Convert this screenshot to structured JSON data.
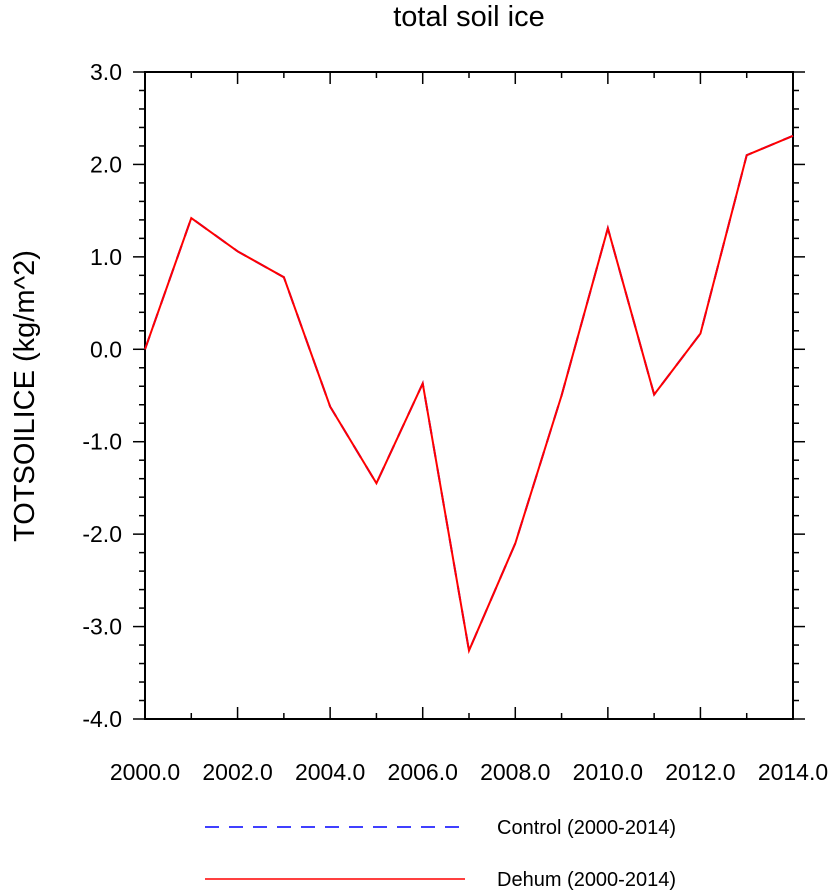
{
  "chart_data": {
    "type": "line",
    "title": "total soil ice",
    "xlabel": "",
    "ylabel": "TOTSOILICE  (kg/m^2)",
    "xlim": [
      2000,
      2014
    ],
    "ylim": [
      -4.0,
      3.0
    ],
    "x_tick_labels": [
      "2000.0",
      "2002.0",
      "2004.0",
      "2006.0",
      "2008.0",
      "2010.0",
      "2012.0",
      "2014.0"
    ],
    "y_tick_labels": [
      "3.0",
      "2.0",
      "1.0",
      "0.0",
      "-1.0",
      "-2.0",
      "-3.0",
      "-4.0"
    ],
    "x": [
      2000,
      2001,
      2002,
      2003,
      2004,
      2005,
      2006,
      2007,
      2008,
      2009,
      2010,
      2011,
      2012,
      2013,
      2014
    ],
    "series": [
      {
        "name": "Control (2000-2014)",
        "color": "#0000ff",
        "style": "dashed",
        "values": [
          0.0,
          1.42,
          1.06,
          0.78,
          -0.62,
          -1.45,
          -0.37,
          -3.26,
          -2.1,
          -0.5,
          1.31,
          -0.49,
          0.17,
          2.1,
          2.31
        ]
      },
      {
        "name": "Dehum (2000-2014)",
        "color": "#ff0000",
        "style": "solid",
        "values": [
          0.0,
          1.42,
          1.06,
          0.78,
          -0.62,
          -1.45,
          -0.37,
          -3.26,
          -2.1,
          -0.5,
          1.31,
          -0.49,
          0.17,
          2.1,
          2.31
        ]
      }
    ],
    "grid": false,
    "legend_position": "bottom"
  }
}
